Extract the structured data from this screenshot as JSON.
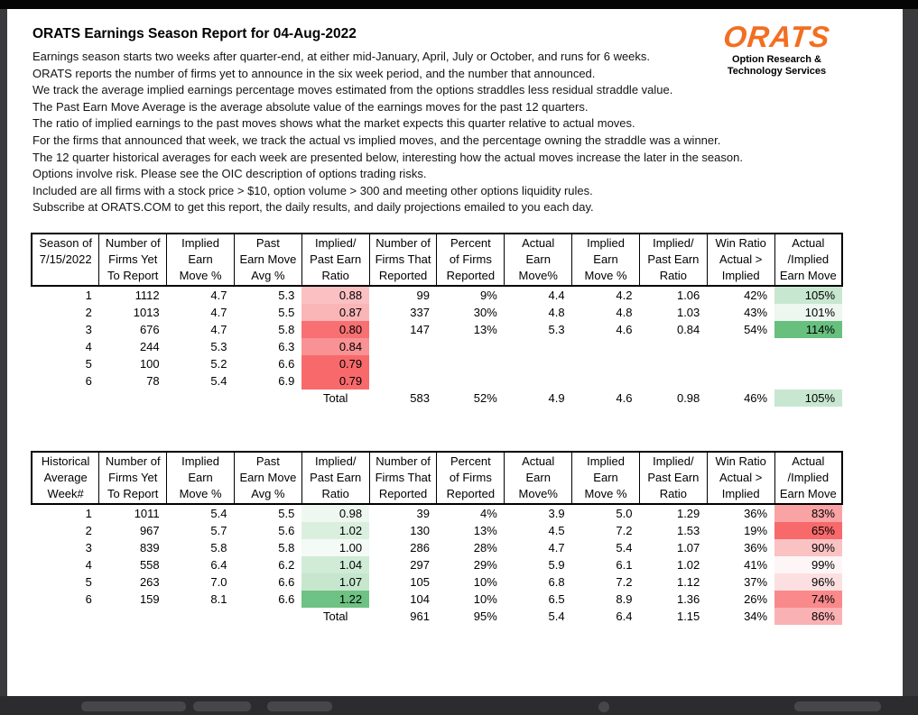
{
  "report": {
    "title": "ORATS Earnings Season Report for 04-Aug-2022",
    "intro": [
      "Earnings season starts two weeks after quarter-end, at either mid-January, April, July or October, and runs for 6 weeks.",
      "ORATS reports the number of firms yet to announce in the six week period, and the number that announced.",
      "We track the average implied earnings percentage moves estimated from the options straddles less residual straddle value.",
      "The Past Earn Move Average is the average absolute value of the earnings moves for the past 12 quarters.",
      "The ratio of implied earnings to the past moves shows what the market expects this quarter relative to actual moves.",
      "For the firms that announced that week, we track the actual vs implied moves, and the percentage owning the straddle was a winner.",
      "The 12 quarter historical averages for each week are presented below, interesting how the actual moves increase the later in the season.",
      "Options involve risk. Please see the OIC description of options trading risks.",
      "Included are all firms with a stock price > $10, option volume > 300 and meeting other options liquidity rules.",
      "Subscribe at ORATS.COM to get this report, the daily results, and daily projections emailed to you each day."
    ],
    "logo": {
      "brand": "ORATS",
      "brand_color": "#f26f21",
      "tagline": [
        "Option Research &",
        "Technology Services"
      ]
    }
  },
  "tables": [
    {
      "name": "current-season",
      "header": [
        [
          "Season of",
          "7/15/2022",
          ""
        ],
        [
          "Number of",
          "Firms Yet",
          "To Report"
        ],
        [
          "Implied",
          "Earn",
          "Move %"
        ],
        [
          "Past",
          "Earn Move",
          "Avg %"
        ],
        [
          "Implied/",
          "Past Earn",
          "Ratio"
        ],
        [
          "Number of",
          "Firms That",
          "Reported"
        ],
        [
          "Percent",
          "of Firms",
          "Reported"
        ],
        [
          "Actual",
          "Earn",
          "Move%"
        ],
        [
          "Implied",
          "Earn",
          "Move %"
        ],
        [
          "Implied/",
          "Past Earn",
          "Ratio"
        ],
        [
          "Win Ratio",
          "Actual >",
          "Implied"
        ],
        [
          "Actual",
          "/Implied",
          "Earn Move"
        ]
      ],
      "rows": [
        {
          "cells": [
            "1",
            "1112",
            "4.7",
            "5.3",
            "0.88",
            "99",
            "9%",
            "4.4",
            "4.2",
            "1.06",
            "42%",
            "105%"
          ],
          "colors": {
            "4": "#fbc0c2",
            "11": "#c8e7d0"
          }
        },
        {
          "cells": [
            "2",
            "1013",
            "4.7",
            "5.5",
            "0.87",
            "337",
            "30%",
            "4.8",
            "4.8",
            "1.03",
            "43%",
            "101%"
          ],
          "colors": {
            "4": "#fab5b7",
            "11": "#edf6ef"
          }
        },
        {
          "cells": [
            "3",
            "676",
            "4.7",
            "5.8",
            "0.80",
            "147",
            "13%",
            "5.3",
            "4.6",
            "0.84",
            "54%",
            "114%"
          ],
          "colors": {
            "4": "#f87072",
            "11": "#68c07e"
          }
        },
        {
          "cells": [
            "4",
            "244",
            "5.3",
            "6.3",
            "0.84",
            "",
            "",
            "",
            "",
            "",
            "",
            ""
          ],
          "colors": {
            "4": "#f99294"
          }
        },
        {
          "cells": [
            "5",
            "100",
            "5.2",
            "6.6",
            "0.79",
            "",
            "",
            "",
            "",
            "",
            "",
            ""
          ],
          "colors": {
            "4": "#f8696b"
          }
        },
        {
          "cells": [
            "6",
            "78",
            "5.4",
            "6.9",
            "0.79",
            "",
            "",
            "",
            "",
            "",
            "",
            ""
          ],
          "colors": {
            "4": "#f8696b"
          }
        }
      ],
      "total": {
        "cells": [
          "",
          "",
          "",
          "",
          "Total",
          "583",
          "52%",
          "4.9",
          "4.6",
          "0.98",
          "46%",
          "105%"
        ],
        "colors": {
          "11": "#c8e7d0"
        }
      }
    },
    {
      "name": "historical-average",
      "header": [
        [
          "Historical",
          "Average",
          "Week#"
        ],
        [
          "Number of",
          "Firms Yet",
          "To Report"
        ],
        [
          "Implied",
          "Earn",
          "Move %"
        ],
        [
          "Past",
          "Earn Move",
          "Avg %"
        ],
        [
          "Implied/",
          "Past Earn",
          "Ratio"
        ],
        [
          "Number of",
          "Firms That",
          "Reported"
        ],
        [
          "Percent",
          "of Firms",
          "Reported"
        ],
        [
          "Actual",
          "Earn",
          "Move%"
        ],
        [
          "Implied",
          "Earn",
          "Move %"
        ],
        [
          "Implied/",
          "Past Earn",
          "Ratio"
        ],
        [
          "Win Ratio",
          "Actual >",
          "Implied"
        ],
        [
          "Actual",
          "/Implied",
          "Earn Move"
        ]
      ],
      "rows": [
        {
          "cells": [
            "1",
            "1011",
            "5.4",
            "5.5",
            "0.98",
            "39",
            "4%",
            "3.9",
            "5.0",
            "1.29",
            "36%",
            "83%"
          ],
          "colors": {
            "4": "#eff7f1",
            "11": "#f9a3a5"
          }
        },
        {
          "cells": [
            "2",
            "967",
            "5.7",
            "5.6",
            "1.02",
            "130",
            "13%",
            "4.5",
            "7.2",
            "1.53",
            "19%",
            "65%"
          ],
          "colors": {
            "4": "#dbefdf",
            "11": "#f8696b"
          }
        },
        {
          "cells": [
            "3",
            "839",
            "5.8",
            "5.8",
            "1.00",
            "286",
            "28%",
            "4.7",
            "5.4",
            "1.07",
            "36%",
            "90%"
          ],
          "colors": {
            "4": "#f4faf5",
            "11": "#fbc2c4"
          }
        },
        {
          "cells": [
            "4",
            "558",
            "6.4",
            "6.2",
            "1.04",
            "297",
            "29%",
            "5.9",
            "6.1",
            "1.02",
            "41%",
            "99%"
          ],
          "colors": {
            "4": "#d0ebd6",
            "11": "#fef6f6"
          }
        },
        {
          "cells": [
            "5",
            "263",
            "7.0",
            "6.6",
            "1.07",
            "105",
            "10%",
            "6.8",
            "7.2",
            "1.12",
            "37%",
            "96%"
          ],
          "colors": {
            "4": "#c6e6ce",
            "11": "#fcdfe0"
          }
        },
        {
          "cells": [
            "6",
            "159",
            "8.1",
            "6.6",
            "1.22",
            "104",
            "10%",
            "6.5",
            "8.9",
            "1.36",
            "26%",
            "74%"
          ],
          "colors": {
            "4": "#6ec283",
            "11": "#f9898b"
          }
        }
      ],
      "total": {
        "cells": [
          "",
          "",
          "",
          "",
          "Total",
          "961",
          "95%",
          "5.4",
          "6.4",
          "1.15",
          "34%",
          "86%"
        ],
        "colors": {
          "11": "#fab1b3"
        }
      }
    }
  ]
}
